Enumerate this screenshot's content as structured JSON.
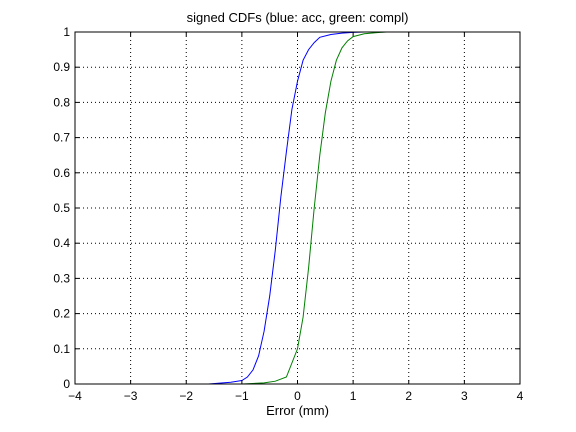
{
  "chart_data": {
    "type": "line",
    "title": "signed CDFs (blue: acc, green: compl)",
    "xlabel": "Error (mm)",
    "ylabel": "",
    "xlim": [
      -4,
      4
    ],
    "ylim": [
      0,
      1
    ],
    "grid": true,
    "xticks": [
      "-4",
      "-3",
      "-2",
      "-1",
      "0",
      "1",
      "2",
      "3",
      "4"
    ],
    "yticks": [
      "0",
      "0.1",
      "0.2",
      "0.3",
      "0.4",
      "0.5",
      "0.6",
      "0.7",
      "0.8",
      "0.9",
      "1"
    ],
    "series": [
      {
        "color": "#0000ff",
        "x": [
          -4,
          -1.6,
          -1.2,
          -1.0,
          -0.9,
          -0.8,
          -0.7,
          -0.6,
          -0.5,
          -0.4,
          -0.3,
          -0.2,
          -0.1,
          0.0,
          0.1,
          0.2,
          0.3,
          0.4,
          0.6,
          0.8,
          1.0,
          1.2,
          1.5,
          2.0,
          2.4
        ],
        "y": [
          0,
          0,
          0.005,
          0.01,
          0.02,
          0.04,
          0.08,
          0.15,
          0.25,
          0.38,
          0.53,
          0.66,
          0.78,
          0.86,
          0.92,
          0.95,
          0.97,
          0.985,
          0.993,
          0.997,
          0.999,
          1.0,
          1.0,
          1.0,
          1.0
        ]
      },
      {
        "color": "#008000",
        "x": [
          -2.0,
          -1.0,
          -0.6,
          -0.4,
          -0.2,
          0.0,
          0.1,
          0.2,
          0.3,
          0.4,
          0.5,
          0.6,
          0.7,
          0.8,
          0.9,
          1.0,
          1.2,
          1.4,
          1.6,
          2.0,
          2.5,
          3.0,
          4.0
        ],
        "y": [
          0,
          0,
          0.003,
          0.008,
          0.02,
          0.1,
          0.19,
          0.33,
          0.5,
          0.65,
          0.77,
          0.86,
          0.92,
          0.955,
          0.975,
          0.987,
          0.995,
          0.998,
          1.0,
          1.0,
          1.0,
          1.0,
          1.0
        ]
      }
    ]
  }
}
